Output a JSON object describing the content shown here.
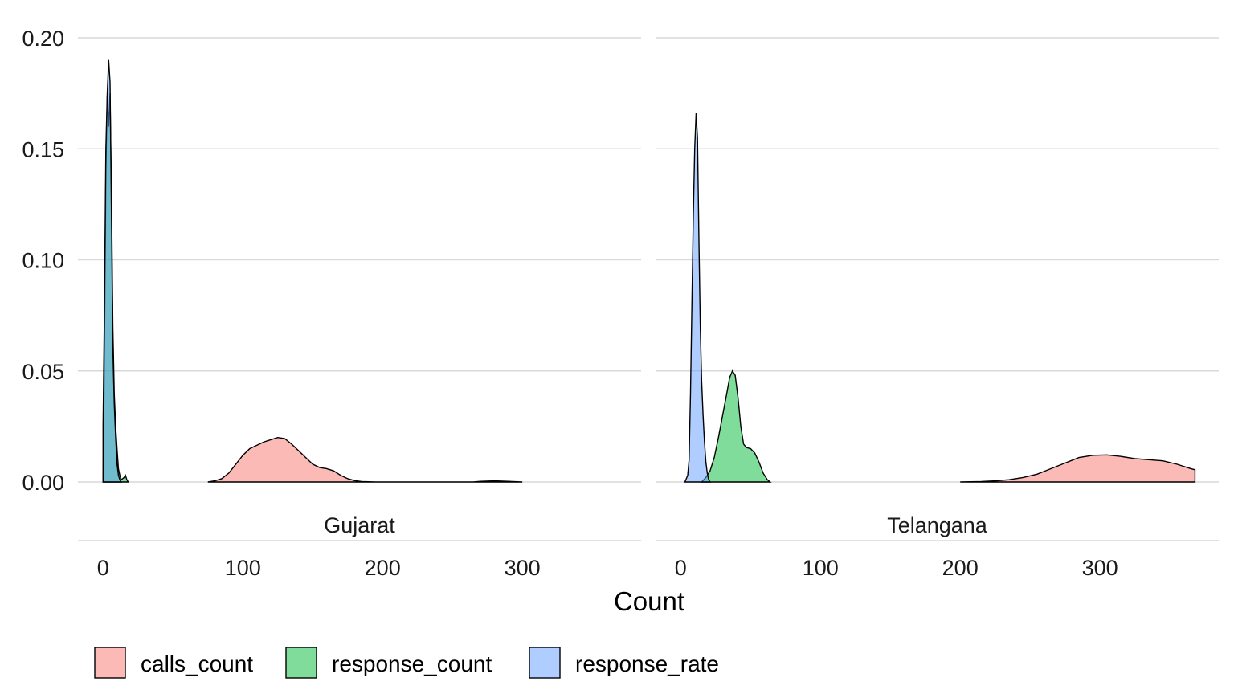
{
  "chart_data": {
    "type": "area",
    "subtype": "density",
    "xlabel": "Count",
    "ylabel": "",
    "ylim": [
      0,
      0.2
    ],
    "y_ticks": [
      "0.00",
      "0.05",
      "0.10",
      "0.15",
      "0.20"
    ],
    "x_ticks": [
      "0",
      "100",
      "200",
      "300"
    ],
    "grid": true,
    "legend_position": "bottom",
    "legend": [
      {
        "name": "calls_count",
        "color": "#F8766D"
      },
      {
        "name": "response_count",
        "color": "#00BA38"
      },
      {
        "name": "response_rate",
        "color": "#619CFF"
      }
    ],
    "panels": [
      {
        "label": "Gujarat",
        "xlim": [
          -18,
          385
        ],
        "series": [
          {
            "name": "calls_count",
            "points": [
              [
                75,
                0
              ],
              [
                80,
                0.0005
              ],
              [
                85,
                0.0015
              ],
              [
                90,
                0.004
              ],
              [
                95,
                0.008
              ],
              [
                100,
                0.012
              ],
              [
                105,
                0.015
              ],
              [
                110,
                0.0165
              ],
              [
                115,
                0.018
              ],
              [
                120,
                0.019
              ],
              [
                125,
                0.02
              ],
              [
                130,
                0.0195
              ],
              [
                135,
                0.017
              ],
              [
                140,
                0.014
              ],
              [
                145,
                0.011
              ],
              [
                150,
                0.008
              ],
              [
                155,
                0.0065
              ],
              [
                160,
                0.006
              ],
              [
                165,
                0.005
              ],
              [
                170,
                0.003
              ],
              [
                175,
                0.0015
              ],
              [
                180,
                0.0006
              ],
              [
                185,
                0.0002
              ],
              [
                195,
                0
              ],
              [
                265,
                0
              ],
              [
                270,
                0.0003
              ],
              [
                280,
                0.0005
              ],
              [
                290,
                0.0003
              ],
              [
                300,
                0
              ]
            ]
          },
          {
            "name": "response_count",
            "points": [
              [
                0,
                0
              ],
              [
                1,
                0.06
              ],
              [
                2,
                0.14
              ],
              [
                3,
                0.174
              ],
              [
                4,
                0.16
              ],
              [
                5,
                0.175
              ],
              [
                6,
                0.13
              ],
              [
                7,
                0.07
              ],
              [
                8,
                0.04
              ],
              [
                9,
                0.025
              ],
              [
                10,
                0.015
              ],
              [
                11,
                0.006
              ],
              [
                12,
                0.003
              ],
              [
                13,
                0.001
              ],
              [
                15,
                0.002
              ],
              [
                16,
                0.003
              ],
              [
                17,
                0.001
              ],
              [
                18,
                0
              ]
            ]
          },
          {
            "name": "response_rate",
            "points": [
              [
                0,
                0.026
              ],
              [
                1,
                0.08
              ],
              [
                2,
                0.15
              ],
              [
                3,
                0.175
              ],
              [
                4,
                0.19
              ],
              [
                5,
                0.18
              ],
              [
                6,
                0.12
              ],
              [
                7,
                0.06
              ],
              [
                8,
                0.035
              ],
              [
                9,
                0.02
              ],
              [
                10,
                0.008
              ],
              [
                11,
                0.003
              ],
              [
                12,
                0.001
              ],
              [
                13,
                0
              ]
            ]
          }
        ]
      },
      {
        "label": "Telangana",
        "xlim": [
          -18,
          385
        ],
        "series": [
          {
            "name": "calls_count",
            "points": [
              [
                200,
                0
              ],
              [
                215,
                0.0002
              ],
              [
                225,
                0.0005
              ],
              [
                235,
                0.001
              ],
              [
                245,
                0.002
              ],
              [
                255,
                0.0035
              ],
              [
                265,
                0.006
              ],
              [
                275,
                0.0085
              ],
              [
                285,
                0.011
              ],
              [
                295,
                0.012
              ],
              [
                305,
                0.0122
              ],
              [
                315,
                0.0115
              ],
              [
                325,
                0.0105
              ],
              [
                335,
                0.01
              ],
              [
                345,
                0.0095
              ],
              [
                355,
                0.008
              ],
              [
                365,
                0.006
              ],
              [
                368,
                0.0055
              ],
              [
                368,
                0
              ]
            ]
          },
          {
            "name": "response_count",
            "points": [
              [
                15,
                0
              ],
              [
                18,
                0.002
              ],
              [
                21,
                0.005
              ],
              [
                24,
                0.011
              ],
              [
                27,
                0.02
              ],
              [
                30,
                0.03
              ],
              [
                33,
                0.04
              ],
              [
                35,
                0.047
              ],
              [
                37,
                0.05
              ],
              [
                39,
                0.048
              ],
              [
                41,
                0.038
              ],
              [
                43,
                0.025
              ],
              [
                45,
                0.017
              ],
              [
                47,
                0.0155
              ],
              [
                50,
                0.015
              ],
              [
                53,
                0.013
              ],
              [
                56,
                0.009
              ],
              [
                59,
                0.004
              ],
              [
                62,
                0.001
              ],
              [
                64,
                0
              ]
            ]
          },
          {
            "name": "response_rate",
            "points": [
              [
                3,
                0
              ],
              [
                5,
                0.003
              ],
              [
                6,
                0.01
              ],
              [
                7,
                0.04
              ],
              [
                8,
                0.08
              ],
              [
                9,
                0.12
              ],
              [
                10,
                0.15
              ],
              [
                11,
                0.166
              ],
              [
                12,
                0.155
              ],
              [
                13,
                0.11
              ],
              [
                14,
                0.07
              ],
              [
                15,
                0.045
              ],
              [
                16,
                0.03
              ],
              [
                17,
                0.018
              ],
              [
                18,
                0.009
              ],
              [
                19,
                0.004
              ],
              [
                20,
                0.001
              ],
              [
                21,
                0
              ]
            ]
          }
        ]
      }
    ]
  }
}
